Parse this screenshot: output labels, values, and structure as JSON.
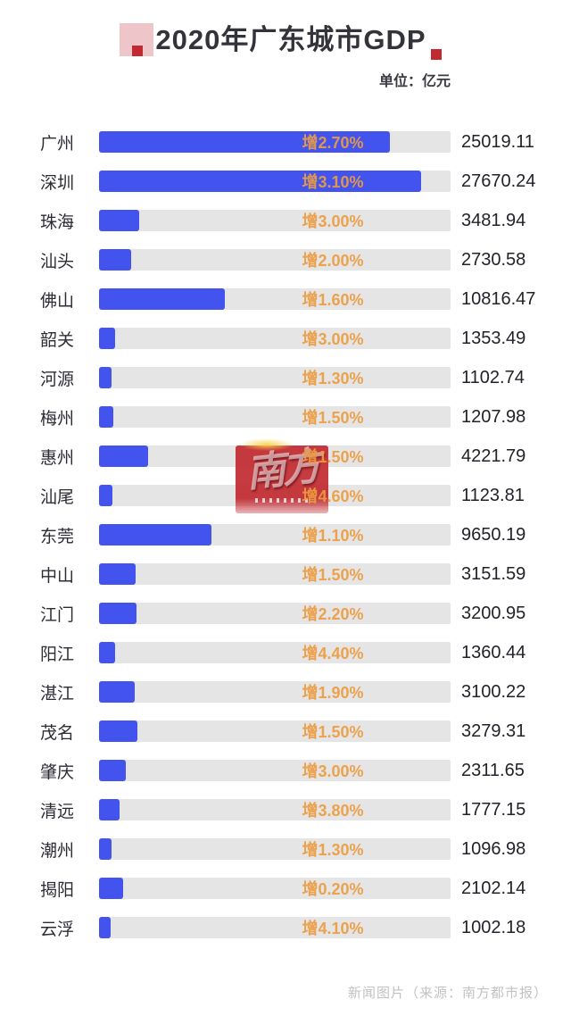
{
  "header": {
    "title": "2020年广东城市GDP",
    "subtitle": "单位：亿元"
  },
  "watermark": {
    "text": "南方"
  },
  "footer": {
    "credit": "新闻图片（来源：南方都市报）"
  },
  "chart_data": {
    "type": "bar",
    "orientation": "horizontal",
    "title": "2020年广东城市GDP",
    "unit_label": "单位：亿元",
    "categories": [
      "广州",
      "深圳",
      "珠海",
      "汕头",
      "佛山",
      "韶关",
      "河源",
      "梅州",
      "惠州",
      "汕尾",
      "东莞",
      "中山",
      "江门",
      "阳江",
      "湛江",
      "茂名",
      "肇庆",
      "清远",
      "潮州",
      "揭阳",
      "云浮"
    ],
    "values": [
      25019.11,
      27670.24,
      3481.94,
      2730.58,
      10816.47,
      1353.49,
      1102.74,
      1207.98,
      4221.79,
      1123.81,
      9650.19,
      3151.59,
      3200.95,
      1360.44,
      3100.22,
      3279.31,
      2311.65,
      1777.15,
      1096.98,
      2102.14,
      1002.18
    ],
    "value_labels": [
      "25019.11",
      "27670.24",
      "3481.94",
      "2730.58",
      "10816.47",
      "1353.49",
      "1102.74",
      "1207.98",
      "4221.79",
      "1123.81",
      "9650.19",
      "3151.59",
      "3200.95",
      "1360.44",
      "3100.22",
      "3279.31",
      "2311.65",
      "1777.15",
      "1096.98",
      "2102.14",
      "1002.18"
    ],
    "growth_labels": [
      "增2.70%",
      "增3.10%",
      "增3.00%",
      "增2.00%",
      "增1.60%",
      "增3.00%",
      "增1.30%",
      "增1.50%",
      "增1.50%",
      "增4.60%",
      "增1.10%",
      "增1.50%",
      "增2.20%",
      "增4.40%",
      "增1.90%",
      "增1.50%",
      "增3.00%",
      "增3.80%",
      "增1.30%",
      "增0.20%",
      "增4.10%"
    ],
    "xlim": [
      0,
      30200
    ],
    "grid": false,
    "legend": false,
    "colors": {
      "bar": "#4253ee",
      "track": "#e5e5e6",
      "growth_text": "#ed9c40",
      "accent_red": "#c02a30",
      "accent_pink": "#eec5c9"
    }
  }
}
